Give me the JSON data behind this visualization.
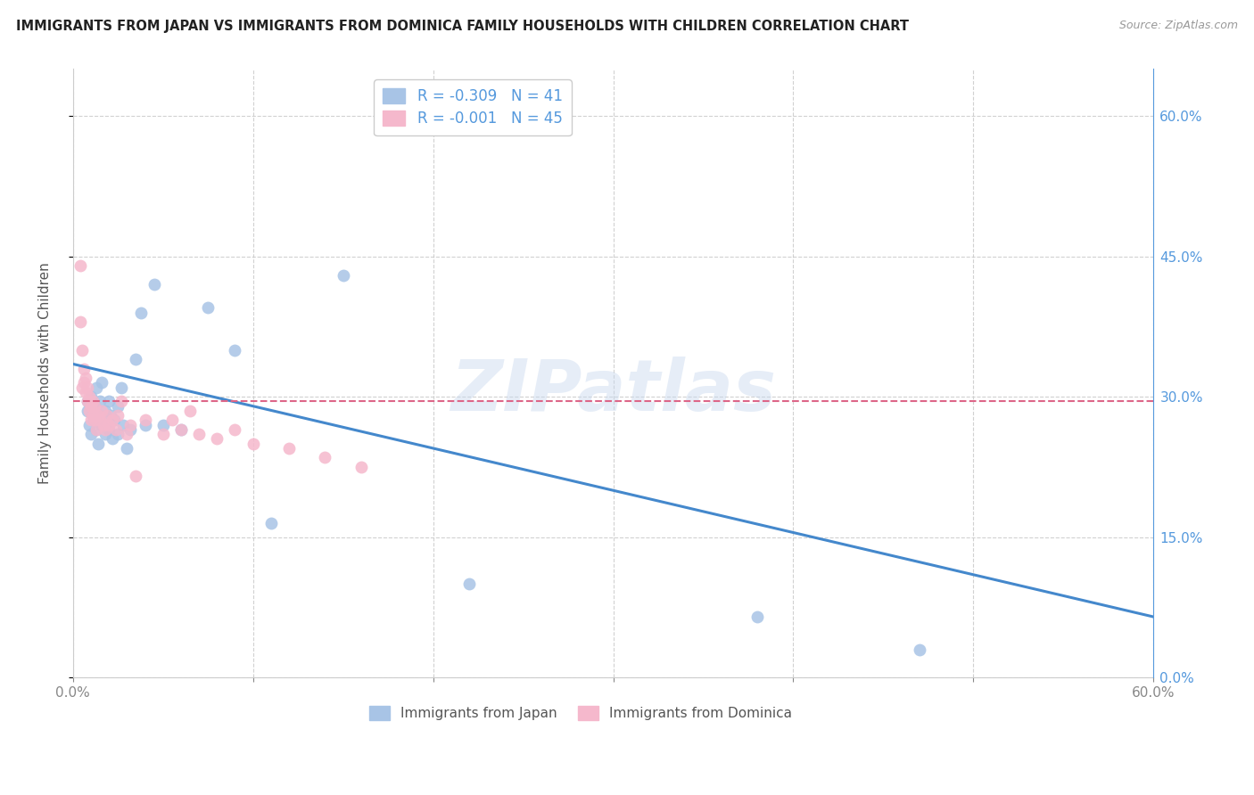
{
  "title": "IMMIGRANTS FROM JAPAN VS IMMIGRANTS FROM DOMINICA FAMILY HOUSEHOLDS WITH CHILDREN CORRELATION CHART",
  "source": "Source: ZipAtlas.com",
  "ylabel": "Family Households with Children",
  "xlim": [
    0.0,
    0.6
  ],
  "ylim": [
    0.0,
    0.65
  ],
  "xticks": [
    0.0,
    0.1,
    0.2,
    0.3,
    0.4,
    0.5,
    0.6
  ],
  "yticks": [
    0.0,
    0.15,
    0.3,
    0.45,
    0.6
  ],
  "legend_blue_r": "-0.309",
  "legend_blue_n": "41",
  "legend_pink_r": "-0.001",
  "legend_pink_n": "45",
  "blue_scatter_color": "#a8c4e6",
  "pink_scatter_color": "#f5b8cc",
  "blue_line_color": "#4488cc",
  "pink_line_color": "#dd6688",
  "watermark_text": "ZIPatlas",
  "grid_color": "#cccccc",
  "right_axis_color": "#5599dd",
  "japan_scatter_x": [
    0.008,
    0.008,
    0.009,
    0.01,
    0.01,
    0.011,
    0.012,
    0.012,
    0.013,
    0.013,
    0.014,
    0.015,
    0.015,
    0.016,
    0.016,
    0.018,
    0.018,
    0.02,
    0.02,
    0.021,
    0.022,
    0.023,
    0.025,
    0.025,
    0.027,
    0.028,
    0.03,
    0.032,
    0.035,
    0.038,
    0.04,
    0.045,
    0.05,
    0.06,
    0.075,
    0.09,
    0.11,
    0.15,
    0.22,
    0.38,
    0.47
  ],
  "japan_scatter_y": [
    0.285,
    0.295,
    0.27,
    0.26,
    0.3,
    0.28,
    0.275,
    0.29,
    0.265,
    0.31,
    0.25,
    0.28,
    0.295,
    0.27,
    0.315,
    0.26,
    0.285,
    0.265,
    0.295,
    0.28,
    0.255,
    0.275,
    0.26,
    0.29,
    0.31,
    0.27,
    0.245,
    0.265,
    0.34,
    0.39,
    0.27,
    0.42,
    0.27,
    0.265,
    0.395,
    0.35,
    0.165,
    0.43,
    0.1,
    0.065,
    0.03
  ],
  "dominica_scatter_x": [
    0.004,
    0.004,
    0.005,
    0.005,
    0.006,
    0.006,
    0.007,
    0.007,
    0.008,
    0.008,
    0.009,
    0.009,
    0.01,
    0.01,
    0.011,
    0.011,
    0.012,
    0.012,
    0.013,
    0.014,
    0.015,
    0.016,
    0.017,
    0.018,
    0.019,
    0.02,
    0.022,
    0.024,
    0.025,
    0.027,
    0.03,
    0.032,
    0.035,
    0.04,
    0.05,
    0.055,
    0.06,
    0.065,
    0.07,
    0.08,
    0.09,
    0.1,
    0.12,
    0.14,
    0.16
  ],
  "dominica_scatter_y": [
    0.44,
    0.38,
    0.31,
    0.35,
    0.33,
    0.315,
    0.305,
    0.32,
    0.295,
    0.31,
    0.285,
    0.3,
    0.275,
    0.29,
    0.28,
    0.295,
    0.275,
    0.29,
    0.265,
    0.28,
    0.275,
    0.285,
    0.27,
    0.265,
    0.28,
    0.27,
    0.275,
    0.265,
    0.28,
    0.295,
    0.26,
    0.27,
    0.215,
    0.275,
    0.26,
    0.275,
    0.265,
    0.285,
    0.26,
    0.255,
    0.265,
    0.25,
    0.245,
    0.235,
    0.225
  ],
  "blue_trend_x": [
    0.0,
    0.6
  ],
  "blue_trend_y_start": 0.335,
  "blue_trend_y_end": 0.065,
  "pink_trend_y": 0.295,
  "marker_size": 100
}
